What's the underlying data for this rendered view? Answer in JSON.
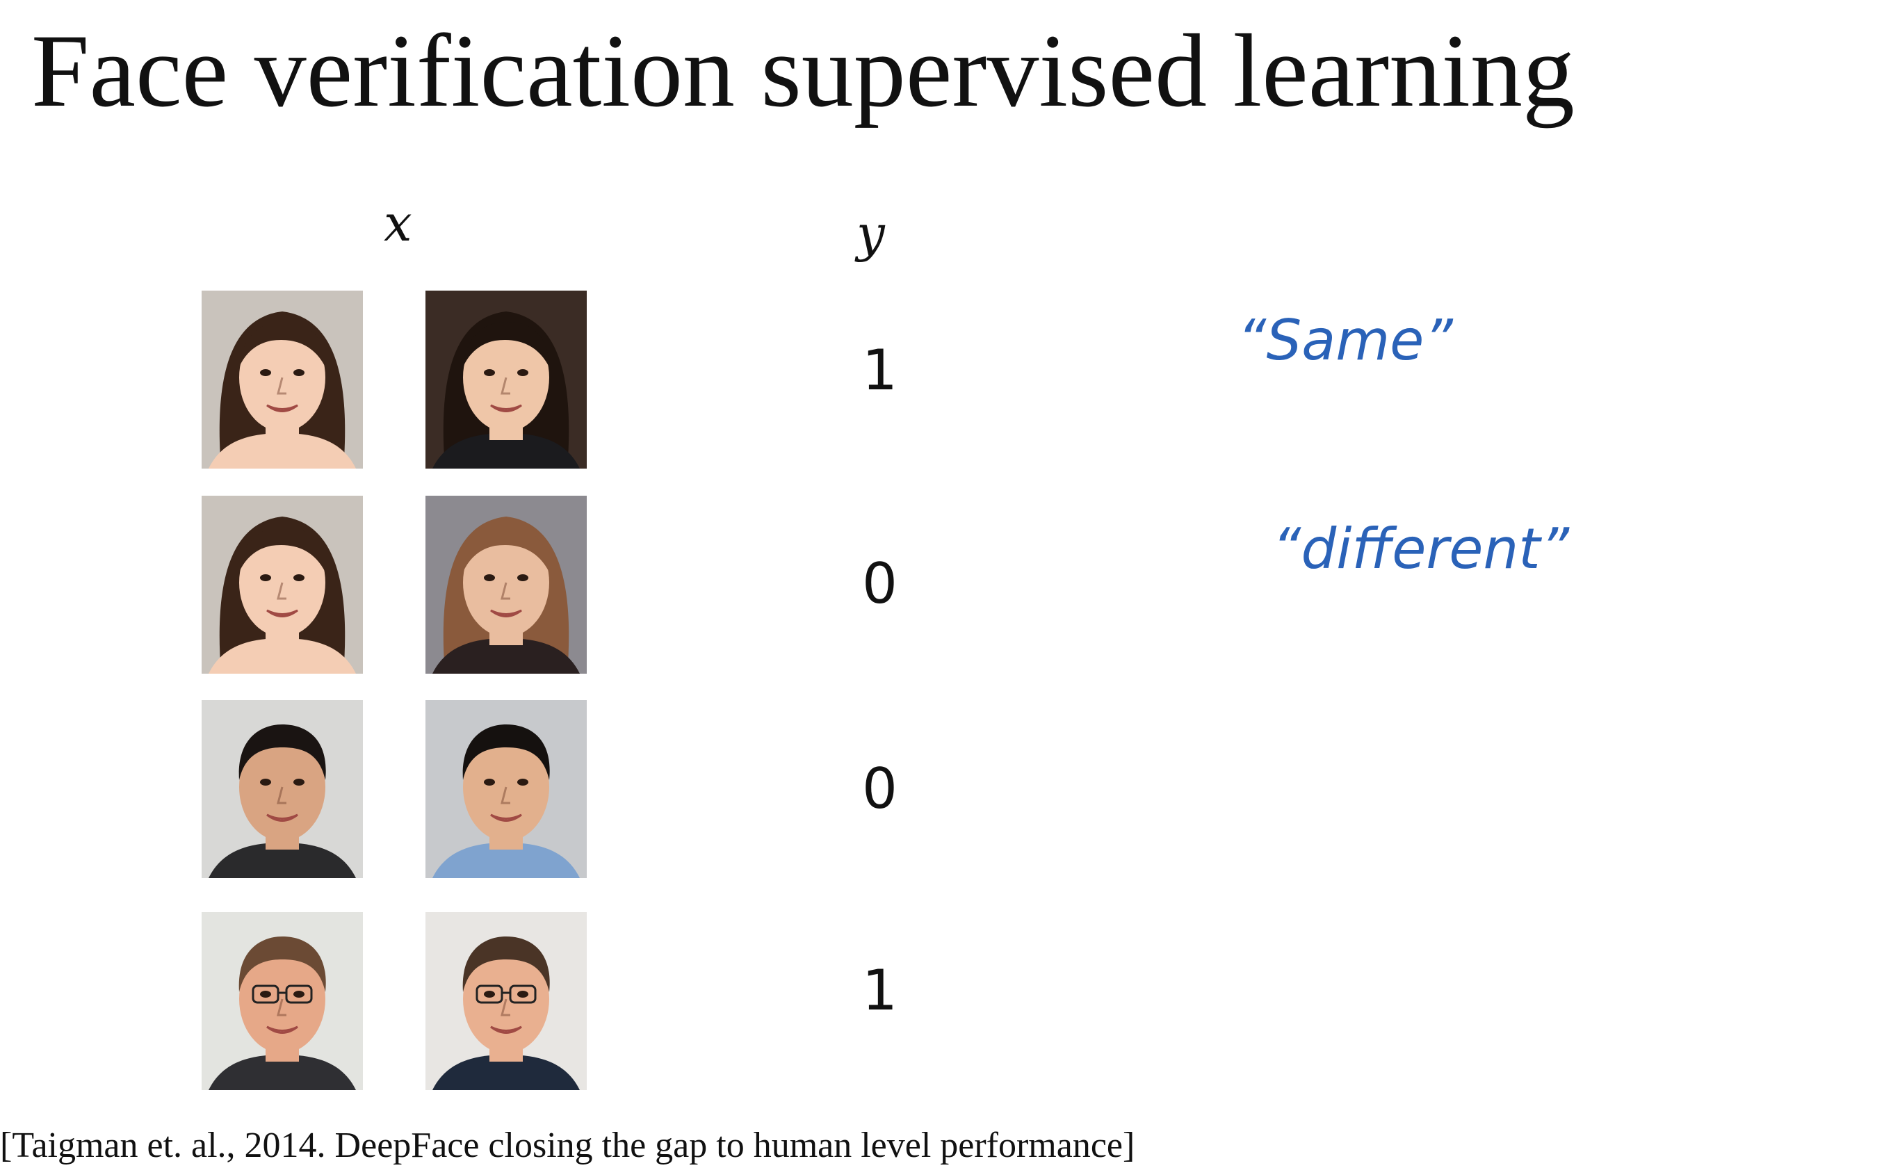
{
  "title": "Face verification supervised learning",
  "columns": {
    "x": "x",
    "y": "y"
  },
  "rows": [
    {
      "y": "1",
      "note": "“Same”",
      "left": {
        "skin": "#f4cdb4",
        "hair": "#3a2418",
        "bg": "#c9c3bc",
        "shirt": "#f4cdb4",
        "long_hair": true,
        "glasses": false
      },
      "right": {
        "skin": "#efc6a8",
        "hair": "#1f140e",
        "bg": "#3b2c25",
        "shirt": "#1b1b1e",
        "long_hair": true,
        "glasses": false
      }
    },
    {
      "y": "0",
      "note": "“different”",
      "left": {
        "skin": "#f4cdb4",
        "hair": "#3a2418",
        "bg": "#c9c3bc",
        "shirt": "#f4cdb4",
        "long_hair": true,
        "glasses": false
      },
      "right": {
        "skin": "#e9bd9f",
        "hair": "#8a5a3c",
        "bg": "#8c8a90",
        "shirt": "#2a2020",
        "long_hair": true,
        "glasses": false
      }
    },
    {
      "y": "0",
      "note": "",
      "left": {
        "skin": "#d9a482",
        "hair": "#1a1412",
        "bg": "#d8d8d6",
        "shirt": "#2a2a2c",
        "long_hair": false,
        "glasses": false
      },
      "right": {
        "skin": "#e2b08d",
        "hair": "#15110f",
        "bg": "#c7c9cc",
        "shirt": "#7fa3cf",
        "long_hair": false,
        "glasses": false
      }
    },
    {
      "y": "1",
      "note": "",
      "left": {
        "skin": "#e6a888",
        "hair": "#6b4a34",
        "bg": "#e3e4e0",
        "shirt": "#2f2f33",
        "long_hair": false,
        "glasses": true
      },
      "right": {
        "skin": "#e9b090",
        "hair": "#4a3426",
        "bg": "#e8e6e3",
        "shirt": "#1f2a3c",
        "long_hair": false,
        "glasses": true
      }
    }
  ],
  "citation": "[Taigman et. al., 2014. DeepFace closing the gap to human level performance]"
}
